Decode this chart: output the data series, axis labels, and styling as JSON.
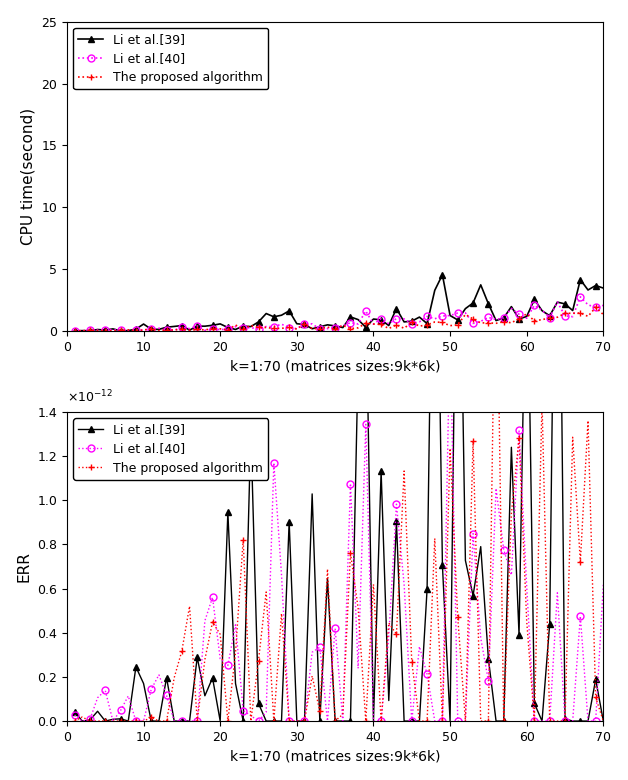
{
  "title1_ylabel": "CPU time(second)",
  "title2_ylabel": "ERR",
  "xlabel": "k=1:70 (matrices sizes:9k*6k)",
  "ylim1": [
    0,
    25
  ],
  "ylim2_scaled": [
    0,
    1.4
  ],
  "yticks1": [
    0,
    5,
    10,
    15,
    20,
    25
  ],
  "yticks2_scaled": [
    0.0,
    0.2,
    0.4,
    0.6,
    0.8,
    1.0,
    1.2,
    1.4
  ],
  "xlim": [
    0,
    70
  ],
  "xticks": [
    0,
    10,
    20,
    30,
    40,
    50,
    60,
    70
  ],
  "legend_labels": [
    "Li et al.[39]",
    "Li et al.[40]",
    "The proposed algorithm"
  ],
  "colors": [
    "#000000",
    "#ff00ff",
    "#ff0000"
  ],
  "marker1": "^",
  "marker2": "o",
  "marker3": "+"
}
